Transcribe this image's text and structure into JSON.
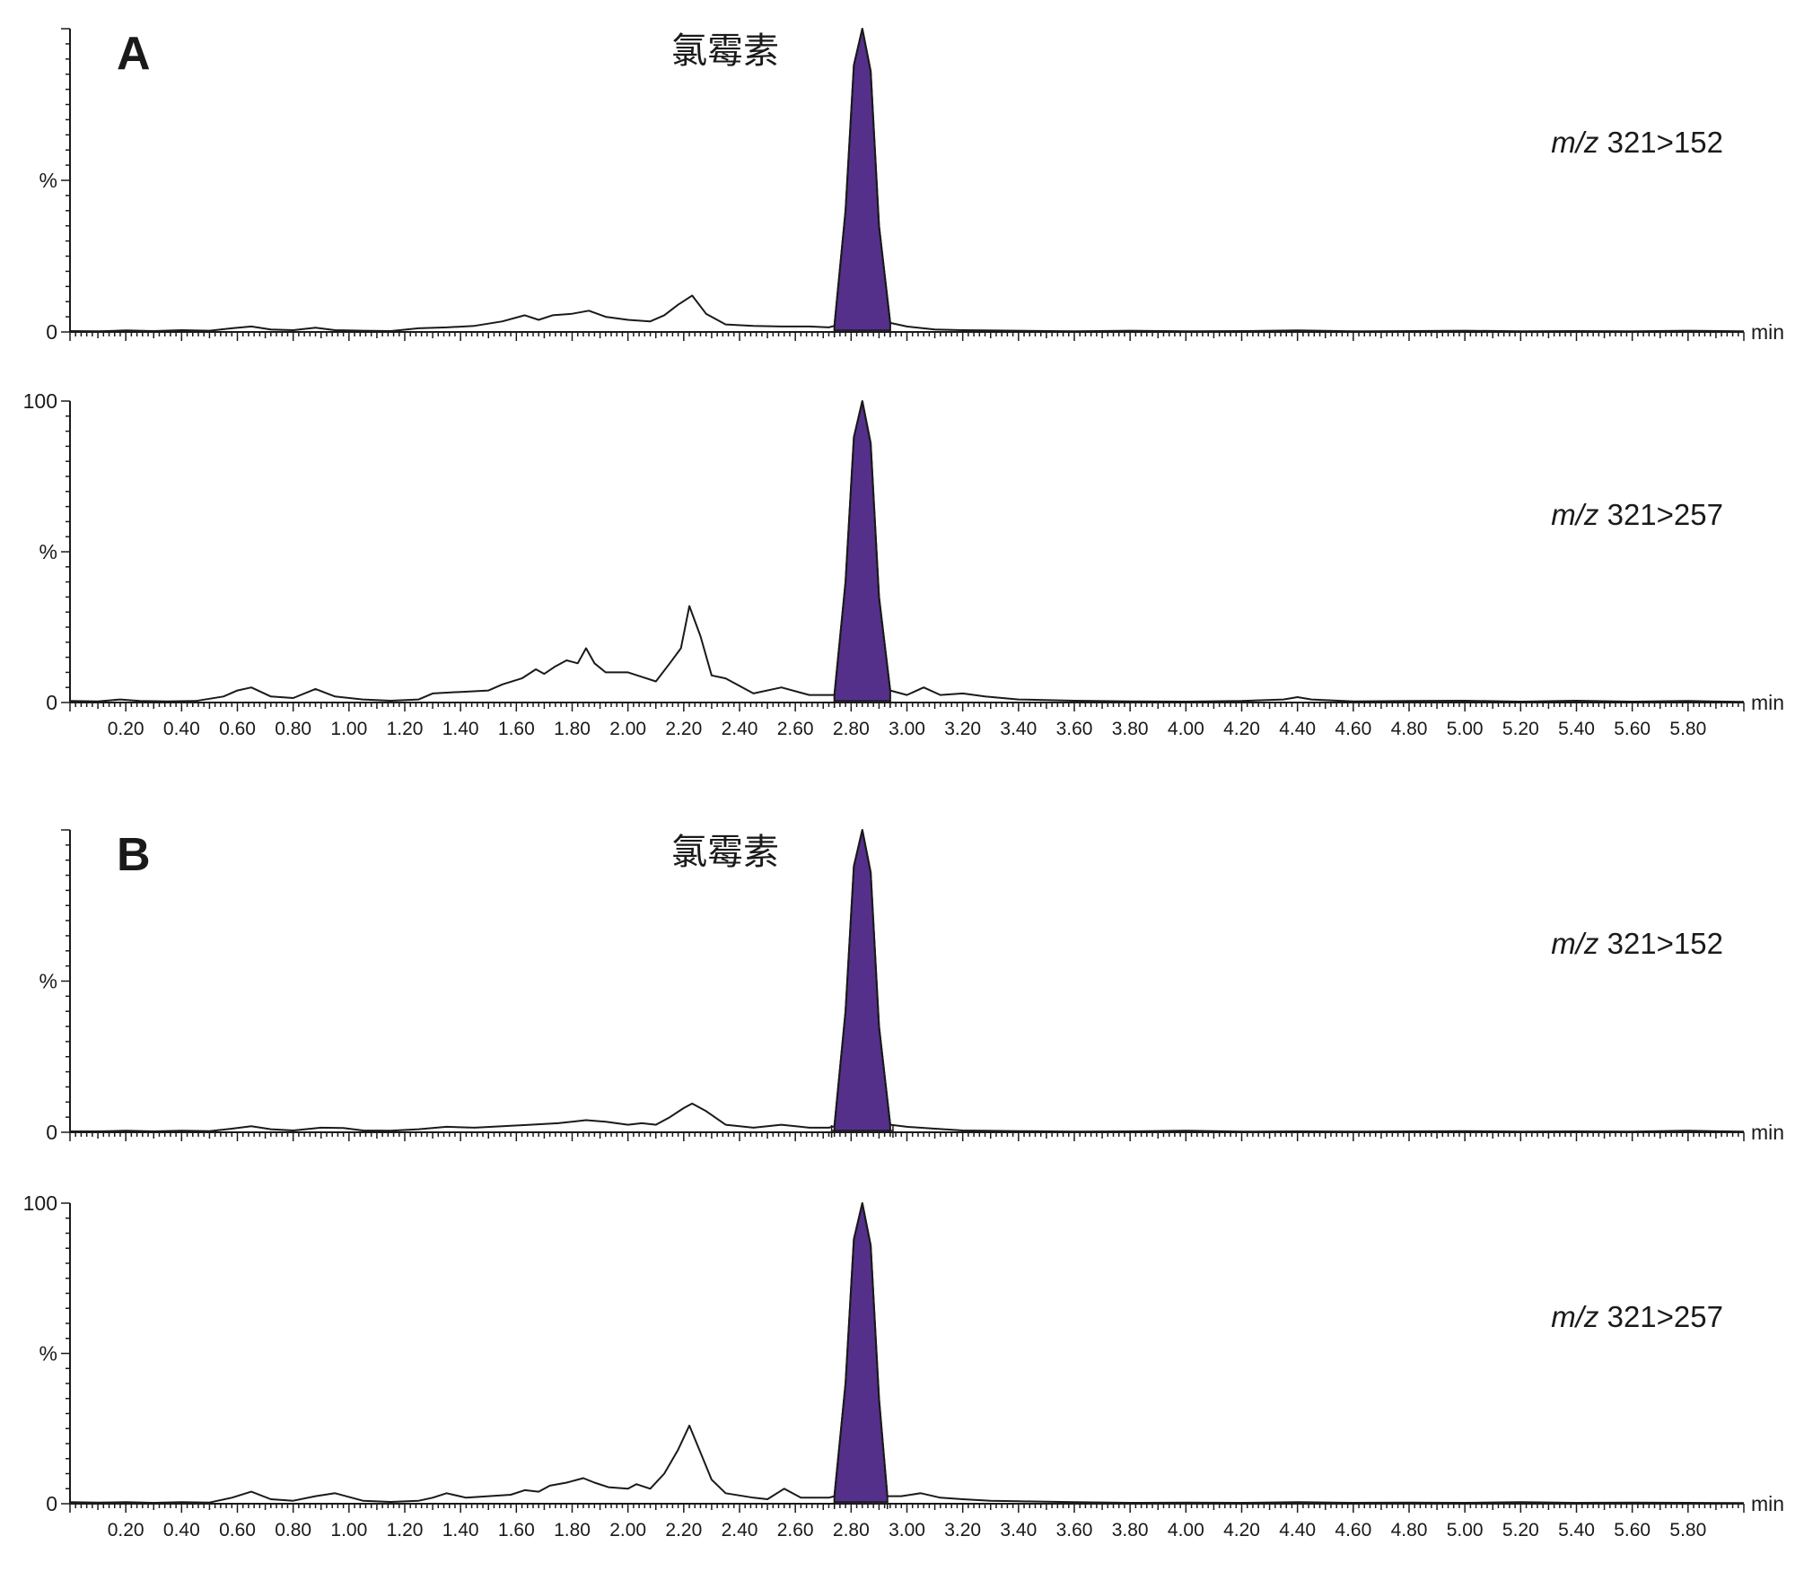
{
  "colors": {
    "peak_fill": "#55308a",
    "line": "#1a1a1a"
  },
  "chart_data": [
    {
      "type": "line",
      "panel_letter": "A",
      "compound": "氯霉素",
      "channel": {
        "prefix": "m/z",
        "transition": "321>152"
      },
      "xlabel": "min",
      "xlim": [
        0.0,
        6.0
      ],
      "ylim": [
        0,
        100
      ],
      "y_tick_labels": [
        "",
        "%",
        "0"
      ],
      "x_tick_labels": [],
      "grid": false,
      "peak_highlight": {
        "retention_time": 2.84,
        "start": 2.74,
        "end": 2.94,
        "height": 100
      },
      "series": [
        {
          "x": [
            0.0,
            0.1,
            0.2,
            0.3,
            0.4,
            0.5,
            0.58,
            0.65,
            0.72,
            0.8,
            0.88,
            0.95,
            1.05,
            1.15,
            1.25,
            1.35,
            1.45,
            1.55,
            1.63,
            1.68,
            1.73,
            1.8,
            1.86,
            1.92,
            2.0,
            2.08,
            2.13,
            2.18,
            2.23,
            2.28,
            2.35,
            2.45,
            2.55,
            2.65,
            2.72,
            2.74,
            2.78,
            2.81,
            2.84,
            2.87,
            2.9,
            2.94,
            3.0,
            3.1,
            3.2,
            3.4,
            3.6,
            3.8,
            4.0,
            4.2,
            4.4,
            4.6,
            4.8,
            5.0,
            5.2,
            5.4,
            5.6,
            5.8,
            6.0
          ],
          "y": [
            0.3,
            0.2,
            0.5,
            0.3,
            0.6,
            0.4,
            1.2,
            1.8,
            0.8,
            0.6,
            1.4,
            0.6,
            0.4,
            0.3,
            1.2,
            1.5,
            2.0,
            3.5,
            5.5,
            4.0,
            5.5,
            6.0,
            7.0,
            5.0,
            4.0,
            3.5,
            5.5,
            9.0,
            12.0,
            6.0,
            2.5,
            2.0,
            1.8,
            1.8,
            1.5,
            2.0,
            40.0,
            88.0,
            100.0,
            86.0,
            35.0,
            3.0,
            1.8,
            0.8,
            0.6,
            0.4,
            0.2,
            0.4,
            0.2,
            0.3,
            0.5,
            0.2,
            0.3,
            0.4,
            0.2,
            0.3,
            0.2,
            0.4,
            0.2
          ]
        }
      ]
    },
    {
      "type": "line",
      "panel_letter": "",
      "compound": "",
      "channel": {
        "prefix": "m/z",
        "transition": "321>257"
      },
      "xlabel": "min",
      "xlim": [
        0.0,
        6.0
      ],
      "ylim": [
        0,
        100
      ],
      "y_tick_labels": [
        "100",
        "%",
        "0"
      ],
      "x_tick_labels": [
        "0.20",
        "0.40",
        "0.60",
        "0.80",
        "1.00",
        "1.20",
        "1.40",
        "1.60",
        "1.80",
        "2.00",
        "2.20",
        "2.40",
        "2.60",
        "2.80",
        "3.00",
        "3.20",
        "3.40",
        "3.60",
        "3.80",
        "4.00",
        "4.20",
        "4.40",
        "4.60",
        "4.80",
        "5.00",
        "5.20",
        "5.40",
        "5.60",
        "5.80"
      ],
      "grid": false,
      "peak_highlight": {
        "retention_time": 2.84,
        "start": 2.74,
        "end": 2.94,
        "height": 100
      },
      "series": [
        {
          "x": [
            0.0,
            0.1,
            0.18,
            0.25,
            0.35,
            0.45,
            0.55,
            0.6,
            0.65,
            0.72,
            0.8,
            0.88,
            0.95,
            1.05,
            1.15,
            1.25,
            1.3,
            1.4,
            1.5,
            1.55,
            1.62,
            1.67,
            1.7,
            1.74,
            1.78,
            1.82,
            1.85,
            1.88,
            1.92,
            2.0,
            2.05,
            2.1,
            2.15,
            2.19,
            2.22,
            2.26,
            2.3,
            2.35,
            2.45,
            2.55,
            2.65,
            2.72,
            2.74,
            2.78,
            2.81,
            2.84,
            2.87,
            2.9,
            2.94,
            3.0,
            3.06,
            3.12,
            3.2,
            3.28,
            3.4,
            3.6,
            3.8,
            4.0,
            4.2,
            4.35,
            4.4,
            4.45,
            4.6,
            4.8,
            5.0,
            5.2,
            5.4,
            5.6,
            5.8,
            6.0
          ],
          "y": [
            0.5,
            0.4,
            1.0,
            0.5,
            0.4,
            0.5,
            2.0,
            4.0,
            5.0,
            2.0,
            1.5,
            4.5,
            2.0,
            1.0,
            0.6,
            1.0,
            3.0,
            3.5,
            4.0,
            6.0,
            8.0,
            11.0,
            9.5,
            12.0,
            14.0,
            13.0,
            18.0,
            13.0,
            10.0,
            10.0,
            8.5,
            7.0,
            13.0,
            18.0,
            32.0,
            22.0,
            9.0,
            8.0,
            3.0,
            5.0,
            2.5,
            2.5,
            2.5,
            40.0,
            88.0,
            100.0,
            86.0,
            35.0,
            4.0,
            2.5,
            5.0,
            2.5,
            3.0,
            2.0,
            1.0,
            0.6,
            0.4,
            0.3,
            0.5,
            1.0,
            1.8,
            1.0,
            0.4,
            0.5,
            0.6,
            0.3,
            0.6,
            0.3,
            0.5,
            0.2
          ]
        }
      ]
    },
    {
      "type": "line",
      "panel_letter": "B",
      "compound": "氯霉素",
      "channel": {
        "prefix": "m/z",
        "transition": "321>152"
      },
      "xlabel": "min",
      "xlim": [
        0.0,
        6.0
      ],
      "ylim": [
        0,
        100
      ],
      "y_tick_labels": [
        "",
        "%",
        "0"
      ],
      "x_tick_labels": [],
      "grid": false,
      "peak_highlight": {
        "retention_time": 2.84,
        "start": 2.73,
        "end": 2.95,
        "height": 100
      },
      "series": [
        {
          "x": [
            0.0,
            0.1,
            0.2,
            0.3,
            0.4,
            0.5,
            0.58,
            0.65,
            0.72,
            0.8,
            0.9,
            0.98,
            1.05,
            1.15,
            1.25,
            1.35,
            1.45,
            1.55,
            1.65,
            1.75,
            1.85,
            1.92,
            2.0,
            2.05,
            2.1,
            2.15,
            2.2,
            2.23,
            2.28,
            2.35,
            2.45,
            2.55,
            2.65,
            2.72,
            2.74,
            2.78,
            2.81,
            2.84,
            2.87,
            2.9,
            2.94,
            3.0,
            3.1,
            3.2,
            3.4,
            3.6,
            3.8,
            4.0,
            4.2,
            4.4,
            4.6,
            4.8,
            5.0,
            5.2,
            5.4,
            5.6,
            5.8,
            6.0
          ],
          "y": [
            0.3,
            0.3,
            0.5,
            0.3,
            0.5,
            0.4,
            1.2,
            2.0,
            1.0,
            0.6,
            1.5,
            1.4,
            0.6,
            0.5,
            1.0,
            1.8,
            1.5,
            2.0,
            2.5,
            3.0,
            4.0,
            3.5,
            2.5,
            3.0,
            2.5,
            5.0,
            8.0,
            9.5,
            7.0,
            2.5,
            1.5,
            2.5,
            1.5,
            1.5,
            2.0,
            40.0,
            88.0,
            100.0,
            86.0,
            35.0,
            2.5,
            1.8,
            1.2,
            0.6,
            0.4,
            0.2,
            0.3,
            0.5,
            0.2,
            0.3,
            0.2,
            0.3,
            0.4,
            0.2,
            0.3,
            0.2,
            0.5,
            0.2
          ]
        }
      ]
    },
    {
      "type": "line",
      "panel_letter": "",
      "compound": "",
      "channel": {
        "prefix": "m/z",
        "transition": "321>257"
      },
      "xlabel": "min",
      "xlim": [
        0.0,
        6.0
      ],
      "ylim": [
        0,
        100
      ],
      "y_tick_labels": [
        "100",
        "%",
        "0"
      ],
      "x_tick_labels": [
        "0.20",
        "0.40",
        "0.60",
        "0.80",
        "1.00",
        "1.20",
        "1.40",
        "1.60",
        "1.80",
        "2.00",
        "2.20",
        "2.40",
        "2.60",
        "2.80",
        "3.00",
        "3.20",
        "3.40",
        "3.60",
        "3.80",
        "4.00",
        "4.20",
        "4.40",
        "4.60",
        "4.80",
        "5.00",
        "5.20",
        "5.40",
        "5.60",
        "5.80"
      ],
      "grid": false,
      "peak_highlight": {
        "retention_time": 2.84,
        "start": 2.74,
        "end": 2.93,
        "height": 100
      },
      "series": [
        {
          "x": [
            0.0,
            0.1,
            0.2,
            0.3,
            0.4,
            0.5,
            0.58,
            0.65,
            0.72,
            0.8,
            0.88,
            0.95,
            1.05,
            1.15,
            1.25,
            1.3,
            1.35,
            1.42,
            1.5,
            1.58,
            1.63,
            1.68,
            1.72,
            1.78,
            1.84,
            1.88,
            1.93,
            2.0,
            2.03,
            2.08,
            2.13,
            2.18,
            2.22,
            2.26,
            2.3,
            2.35,
            2.45,
            2.5,
            2.56,
            2.62,
            2.72,
            2.74,
            2.78,
            2.81,
            2.84,
            2.87,
            2.9,
            2.93,
            2.98,
            3.05,
            3.12,
            3.2,
            3.3,
            3.4,
            3.6,
            3.8,
            4.0,
            4.2,
            4.4,
            4.6,
            4.8,
            5.0,
            5.2,
            5.4,
            5.6,
            5.8,
            6.0
          ],
          "y": [
            0.5,
            0.4,
            0.5,
            0.3,
            0.5,
            0.4,
            2.0,
            4.0,
            1.5,
            1.0,
            2.5,
            3.5,
            1.0,
            0.6,
            1.0,
            2.0,
            3.5,
            2.0,
            2.5,
            3.0,
            4.5,
            4.0,
            6.0,
            7.0,
            8.5,
            7.0,
            5.5,
            5.0,
            6.5,
            5.0,
            10.0,
            18.0,
            26.0,
            17.0,
            8.0,
            3.5,
            2.0,
            1.5,
            5.0,
            2.0,
            2.0,
            2.5,
            40.0,
            88.0,
            100.0,
            86.0,
            35.0,
            2.5,
            2.5,
            3.5,
            2.0,
            1.5,
            1.0,
            0.8,
            0.5,
            0.3,
            0.4,
            0.3,
            0.5,
            0.3,
            0.4,
            0.3,
            0.5,
            0.3,
            0.4,
            0.3,
            0.2
          ]
        }
      ]
    }
  ]
}
